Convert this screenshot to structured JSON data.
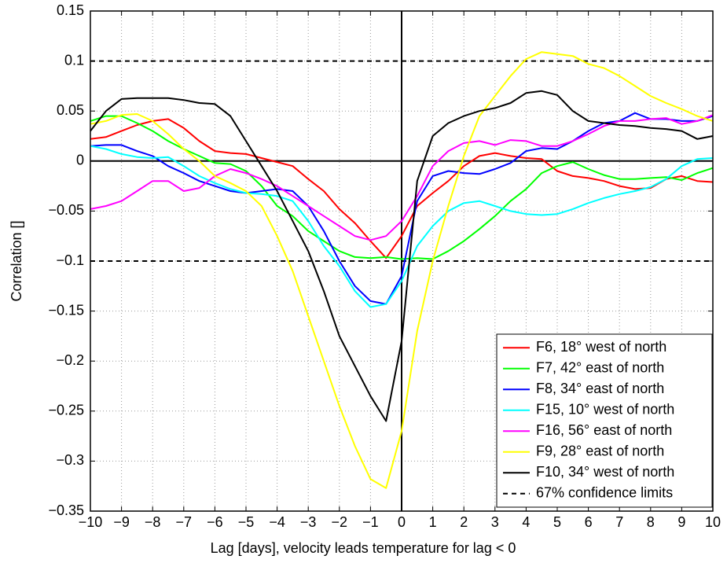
{
  "chart_data": {
    "type": "line",
    "x_label": "Lag [days], velocity leads temperature for lag < 0",
    "y_label": "Correlation []",
    "x": [
      -10,
      -9.5,
      -9,
      -8.5,
      -8,
      -7.5,
      -7,
      -6.5,
      -6,
      -5.5,
      -5,
      -4.5,
      -4,
      -3.5,
      -3,
      -2.5,
      -2,
      -1.5,
      -1,
      -0.5,
      0,
      0.5,
      1,
      1.5,
      2,
      2.5,
      3,
      3.5,
      4,
      4.5,
      5,
      5.5,
      6,
      6.5,
      7,
      7.5,
      8,
      8.5,
      9,
      9.5,
      10
    ],
    "series": [
      {
        "name": "F6, 18° west of north",
        "color": "#ff0000",
        "values": [
          0.022,
          0.024,
          0.03,
          0.036,
          0.04,
          0.042,
          0.033,
          0.02,
          0.01,
          0.008,
          0.007,
          0.003,
          -0.001,
          -0.005,
          -0.018,
          -0.03,
          -0.048,
          -0.062,
          -0.08,
          -0.097,
          -0.075,
          -0.045,
          -0.032,
          -0.02,
          -0.005,
          0.005,
          0.008,
          0.005,
          0.003,
          0.002,
          -0.01,
          -0.015,
          -0.017,
          -0.02,
          -0.025,
          -0.028,
          -0.027,
          -0.018,
          -0.015,
          -0.02,
          -0.021
        ]
      },
      {
        "name": "F7, 42° east of north",
        "color": "#00ff00",
        "values": [
          0.04,
          0.045,
          0.045,
          0.038,
          0.03,
          0.02,
          0.012,
          0.005,
          -0.002,
          -0.003,
          -0.01,
          -0.025,
          -0.045,
          -0.055,
          -0.07,
          -0.08,
          -0.09,
          -0.096,
          -0.097,
          -0.096,
          -0.098,
          -0.097,
          -0.098,
          -0.09,
          -0.08,
          -0.068,
          -0.055,
          -0.04,
          -0.028,
          -0.012,
          -0.005,
          -0.001,
          -0.008,
          -0.014,
          -0.018,
          -0.018,
          -0.017,
          -0.016,
          -0.019,
          -0.012,
          -0.007
        ]
      },
      {
        "name": "F8, 34° east of north",
        "color": "#0000ff",
        "values": [
          0.015,
          0.016,
          0.016,
          0.01,
          0.005,
          -0.005,
          -0.012,
          -0.02,
          -0.025,
          -0.03,
          -0.032,
          -0.03,
          -0.028,
          -0.03,
          -0.045,
          -0.07,
          -0.1,
          -0.125,
          -0.14,
          -0.143,
          -0.115,
          -0.04,
          -0.015,
          -0.01,
          -0.012,
          -0.013,
          -0.008,
          -0.002,
          0.01,
          0.013,
          0.012,
          0.02,
          0.03,
          0.038,
          0.04,
          0.048,
          0.042,
          0.042,
          0.04,
          0.04,
          0.045
        ]
      },
      {
        "name": "F15, 10° west of north",
        "color": "#00ffff",
        "values": [
          0.015,
          0.012,
          0.007,
          0.004,
          0.003,
          0.004,
          -0.005,
          -0.015,
          -0.022,
          -0.028,
          -0.032,
          -0.033,
          -0.035,
          -0.04,
          -0.06,
          -0.085,
          -0.105,
          -0.13,
          -0.146,
          -0.143,
          -0.12,
          -0.085,
          -0.065,
          -0.05,
          -0.042,
          -0.04,
          -0.045,
          -0.05,
          -0.053,
          -0.054,
          -0.053,
          -0.048,
          -0.042,
          -0.037,
          -0.033,
          -0.03,
          -0.026,
          -0.018,
          -0.005,
          0.002,
          0.003
        ]
      },
      {
        "name": "F16, 56° east of north",
        "color": "#ff00ff",
        "values": [
          -0.048,
          -0.045,
          -0.04,
          -0.03,
          -0.02,
          -0.02,
          -0.03,
          -0.027,
          -0.015,
          -0.008,
          -0.012,
          -0.018,
          -0.025,
          -0.035,
          -0.045,
          -0.055,
          -0.065,
          -0.075,
          -0.079,
          -0.075,
          -0.06,
          -0.035,
          -0.005,
          0.01,
          0.018,
          0.02,
          0.016,
          0.021,
          0.02,
          0.015,
          0.015,
          0.02,
          0.027,
          0.035,
          0.04,
          0.04,
          0.042,
          0.043,
          0.037,
          0.04,
          0.046
        ]
      },
      {
        "name": "F9, 28° east of north",
        "color": "#ffff00",
        "values": [
          0.037,
          0.04,
          0.046,
          0.047,
          0.04,
          0.027,
          0.012,
          0,
          -0.015,
          -0.022,
          -0.03,
          -0.045,
          -0.075,
          -0.11,
          -0.155,
          -0.2,
          -0.245,
          -0.285,
          -0.318,
          -0.327,
          -0.27,
          -0.17,
          -0.1,
          -0.045,
          0.005,
          0.045,
          0.065,
          0.085,
          0.102,
          0.109,
          0.107,
          0.105,
          0.097,
          0.093,
          0.085,
          0.075,
          0.065,
          0.058,
          0.052,
          0.045,
          0.04
        ]
      },
      {
        "name": "F10, 34° west of north",
        "color": "#000000",
        "values": [
          0.03,
          0.05,
          0.062,
          0.063,
          0.063,
          0.063,
          0.061,
          0.058,
          0.057,
          0.045,
          0.02,
          -0.005,
          -0.03,
          -0.06,
          -0.09,
          -0.13,
          -0.175,
          -0.205,
          -0.235,
          -0.26,
          -0.18,
          -0.02,
          0.025,
          0.038,
          0.045,
          0.05,
          0.053,
          0.058,
          0.068,
          0.07,
          0.066,
          0.05,
          0.04,
          0.038,
          0.036,
          0.035,
          0.033,
          0.032,
          0.03,
          0.022,
          0.025
        ]
      }
    ],
    "confidence": {
      "name": "67% confidence limits",
      "color": "#000000",
      "values": [
        0.1,
        -0.1
      ]
    },
    "xlim": [
      -10,
      10
    ],
    "ylim": [
      -0.35,
      0.15
    ],
    "xticks": [
      {
        "value": -10,
        "label": "−10"
      },
      {
        "value": -9,
        "label": "−9"
      },
      {
        "value": -8,
        "label": "−8"
      },
      {
        "value": -7,
        "label": "−7"
      },
      {
        "value": -6,
        "label": "−6"
      },
      {
        "value": -5,
        "label": "−5"
      },
      {
        "value": -4,
        "label": "−4"
      },
      {
        "value": -3,
        "label": "−3"
      },
      {
        "value": -2,
        "label": "−2"
      },
      {
        "value": -1,
        "label": "−1"
      },
      0,
      1,
      2,
      3,
      4,
      5,
      6,
      7,
      8,
      9,
      10
    ],
    "yticks": [
      {
        "value": -0.35,
        "label": "−0.35"
      },
      {
        "value": -0.3,
        "label": "−0.3"
      },
      {
        "value": -0.25,
        "label": "−0.25"
      },
      {
        "value": -0.2,
        "label": "−0.2"
      },
      {
        "value": -0.15,
        "label": "−0.15"
      },
      {
        "value": -0.1,
        "label": "−0.1"
      },
      {
        "value": -0.05,
        "label": "−0.05"
      },
      0,
      0.05,
      0.1,
      0.15
    ],
    "grid": true,
    "legend": "lower right"
  }
}
